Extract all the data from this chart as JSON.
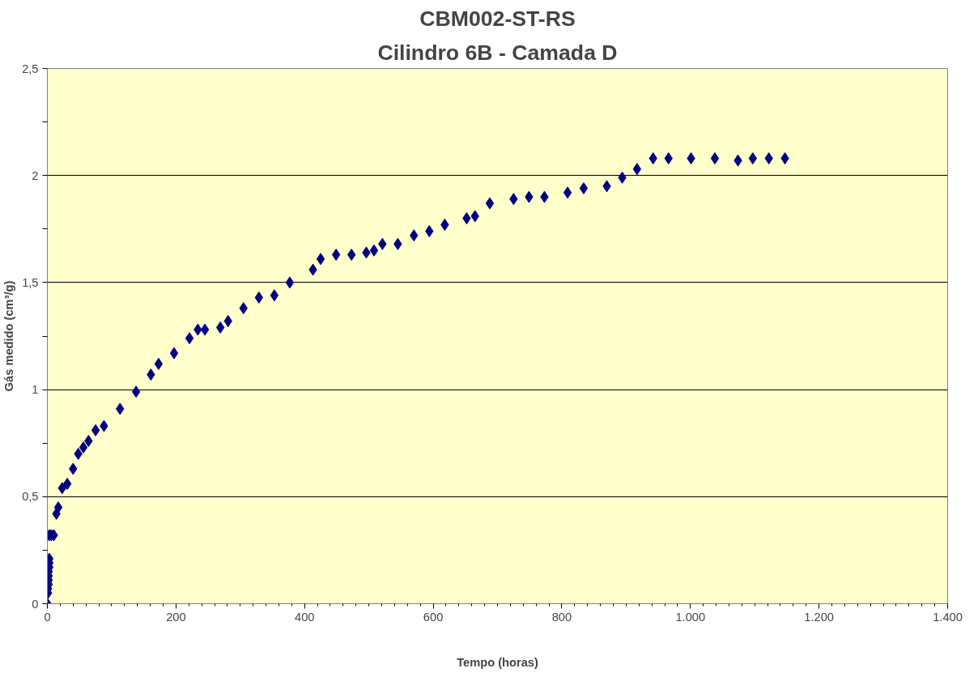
{
  "chart_data": {
    "type": "scatter",
    "title": "CBM002-ST-RS",
    "subtitle": "Cilindro 6B - Camada D",
    "xlabel": "Tempo (horas)",
    "ylabel": "Gás medido (cm³/g)",
    "marker": "diamond",
    "grid": "y",
    "xlim": [
      0,
      1400
    ],
    "xticks": [
      0,
      200,
      400,
      600,
      800,
      {
        "value": 1000,
        "label": "1.000"
      },
      {
        "value": 1200,
        "label": "1.200"
      },
      {
        "value": 1400,
        "label": "1.400"
      }
    ],
    "ylim": [
      0,
      2.5
    ],
    "yticks": [
      0,
      {
        "value": 0.25,
        "label": null
      },
      {
        "value": 0.5,
        "label": "0,5"
      },
      {
        "value": 0.75,
        "label": null
      },
      1,
      {
        "value": 1.25,
        "label": null
      },
      {
        "value": 1.5,
        "label": "1,5"
      },
      {
        "value": 1.75,
        "label": null
      },
      2,
      {
        "value": 2.25,
        "label": null
      },
      {
        "value": 2.5,
        "label": "2,5"
      }
    ],
    "series": [
      {
        "color": "#000080",
        "x": [
          0,
          1,
          1,
          2,
          2,
          2,
          2,
          3,
          3,
          3,
          3,
          6,
          10,
          14,
          17,
          23,
          31,
          40,
          48,
          56,
          64,
          75,
          88,
          113,
          138,
          161,
          173,
          197,
          221,
          234,
          245,
          269,
          281,
          305,
          329,
          353,
          377,
          413,
          425,
          449,
          473,
          496,
          508,
          521,
          545,
          570,
          594,
          618,
          652,
          665,
          688,
          725,
          749,
          773,
          809,
          834,
          870,
          894,
          917,
          942,
          966,
          1001,
          1038,
          1074,
          1097,
          1122,
          1147
        ],
        "values": [
          0,
          0.05,
          0.07,
          0.09,
          0.11,
          0.13,
          0.15,
          0.17,
          0.19,
          0.21,
          0.32,
          0.32,
          0.32,
          0.42,
          0.45,
          0.54,
          0.56,
          0.63,
          0.7,
          0.73,
          0.76,
          0.81,
          0.83,
          0.91,
          0.99,
          1.07,
          1.12,
          1.17,
          1.24,
          1.28,
          1.28,
          1.29,
          1.32,
          1.38,
          1.43,
          1.44,
          1.5,
          1.56,
          1.61,
          1.63,
          1.63,
          1.64,
          1.65,
          1.68,
          1.68,
          1.72,
          1.74,
          1.77,
          1.8,
          1.81,
          1.87,
          1.89,
          1.9,
          1.9,
          1.92,
          1.94,
          1.95,
          1.99,
          2.03,
          2.08,
          2.08,
          2.08,
          2.08,
          2.07,
          2.08,
          2.08,
          2.08
        ]
      }
    ]
  }
}
